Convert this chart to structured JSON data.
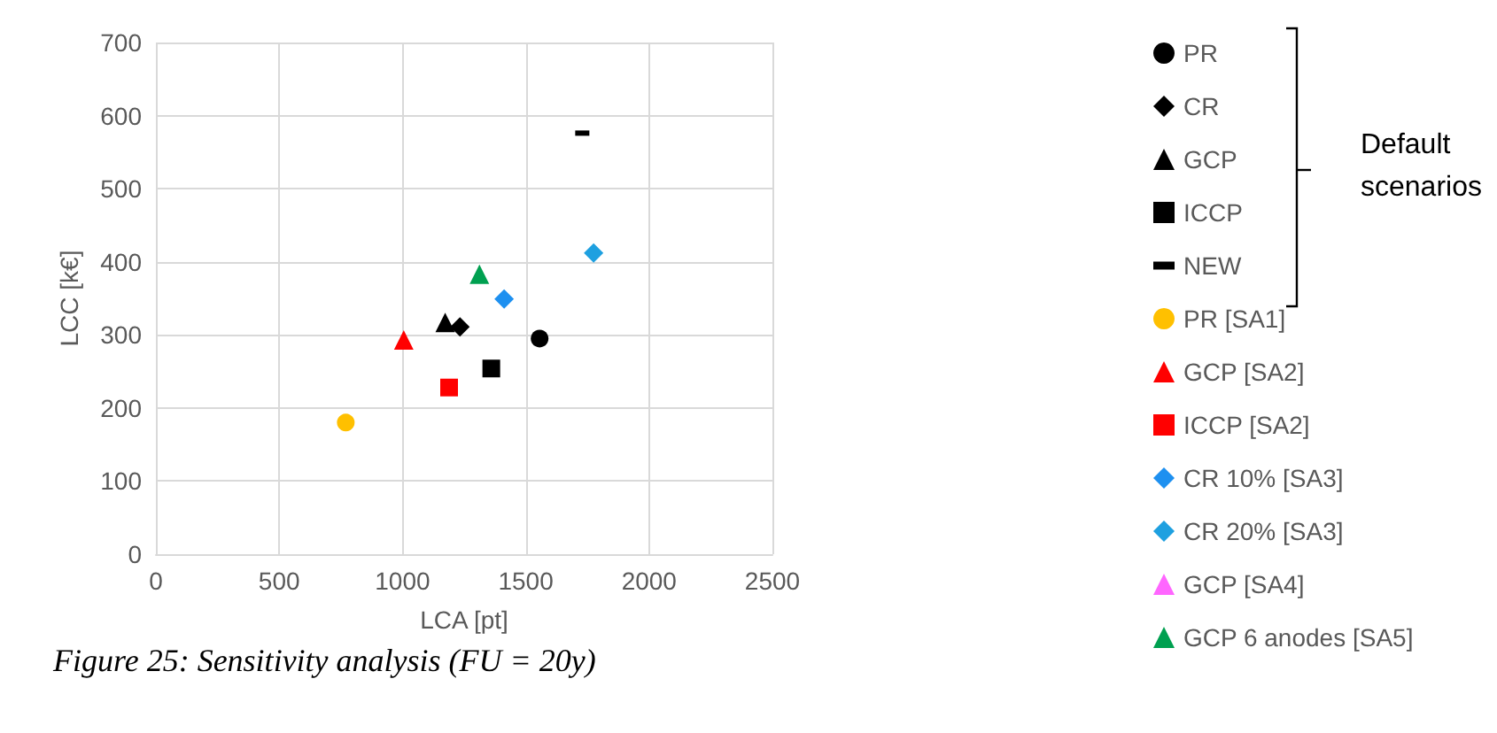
{
  "chart_data": {
    "type": "scatter",
    "xlabel": "LCA [pt]",
    "ylabel": "LCC [k€]",
    "xlim": [
      0,
      2500
    ],
    "xticks": [
      0,
      500,
      1000,
      1500,
      2000,
      2500
    ],
    "ylim": [
      0,
      700
    ],
    "yticks": [
      0,
      100,
      200,
      300,
      400,
      500,
      600,
      700
    ],
    "grid": true,
    "legend": "right",
    "annotations": [
      "Default scenarios",
      "Figure 25: Sensitivity analysis (FU = 20y)"
    ],
    "series": [
      {
        "name": "PR",
        "color": "#000000",
        "marker": "circle",
        "x": [
          1556
        ],
        "values": [
          295
        ]
      },
      {
        "name": "CR",
        "color": "#000000",
        "marker": "diamond",
        "x": [
          1233
        ],
        "values": [
          311
        ]
      },
      {
        "name": "GCP",
        "color": "#000000",
        "marker": "triangle",
        "x": [
          1173
        ],
        "values": [
          317
        ]
      },
      {
        "name": "ICCP",
        "color": "#000000",
        "marker": "square",
        "x": [
          1360
        ],
        "values": [
          254
        ]
      },
      {
        "name": "NEW",
        "color": "#000000",
        "marker": "square",
        "x": [
          1729
        ],
        "values": [
          576
        ]
      },
      {
        "name": "PR [SA1]",
        "color": "#ffc000",
        "marker": "circle",
        "x": [
          770
        ],
        "values": [
          180
        ]
      },
      {
        "name": "GCP [SA2]",
        "color": "#ff0000",
        "marker": "triangle",
        "x": [
          1005
        ],
        "values": [
          293
        ]
      },
      {
        "name": "ICCP [SA2]",
        "color": "#ff0000",
        "marker": "square",
        "x": [
          1189
        ],
        "values": [
          228
        ]
      },
      {
        "name": "CR 10% [SA3]",
        "color": "#1e90f0",
        "marker": "diamond",
        "x": [
          1412
        ],
        "values": [
          349
        ]
      },
      {
        "name": "CR 20% [SA3]",
        "color": "#1ea0e0",
        "marker": "diamond",
        "x": [
          1775
        ],
        "values": [
          412
        ]
      },
      {
        "name": "GCP [SA4]",
        "color": "#ff66ff",
        "marker": "triangle",
        "x": [
          null
        ],
        "values": [
          null
        ]
      },
      {
        "name": "GCP 6 anodes [SA5]",
        "color": "#00a050",
        "marker": "triangle",
        "x": [
          1312
        ],
        "values": [
          383
        ]
      }
    ]
  }
}
